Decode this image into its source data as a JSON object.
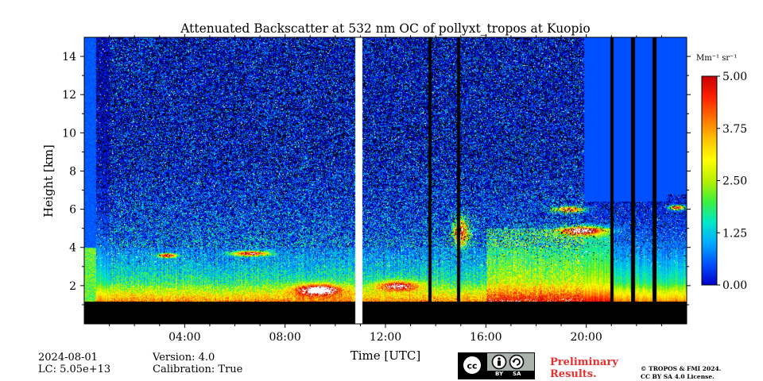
{
  "chart_data": {
    "type": "heatmap",
    "title": "Attenuated Backscatter at 532 nm OC of pollyxt_tropos at Kuopio",
    "xlabel": "Time [UTC]",
    "ylabel": "Height [km]",
    "xlim_hours": [
      0,
      24
    ],
    "ylim_km": [
      0,
      15
    ],
    "x_ticks": [
      {
        "value": 4,
        "label": "04:00"
      },
      {
        "value": 8,
        "label": "08:00"
      },
      {
        "value": 12,
        "label": "12:00"
      },
      {
        "value": 16,
        "label": "16:00"
      },
      {
        "value": 20,
        "label": "20:00"
      }
    ],
    "y_ticks": [
      {
        "value": 2,
        "label": "2"
      },
      {
        "value": 4,
        "label": "4"
      },
      {
        "value": 6,
        "label": "6"
      },
      {
        "value": 8,
        "label": "8"
      },
      {
        "value": 10,
        "label": "10"
      },
      {
        "value": 12,
        "label": "12"
      },
      {
        "value": 14,
        "label": "14"
      }
    ],
    "colorbar": {
      "label": "Mm⁻¹ sr⁻¹",
      "min": 0.0,
      "max": 5.0,
      "ticks": [
        "0.00",
        "1.25",
        "2.50",
        "3.75",
        "5.00"
      ],
      "colors": [
        "#0000c8",
        "#0050ff",
        "#00aaff",
        "#00e8c8",
        "#3cf03c",
        "#b8f000",
        "#ffff00",
        "#ffc000",
        "#ff7000",
        "#ff2000",
        "#c80000"
      ]
    },
    "features": {
      "no_signal_below_km": 1.2,
      "data_gap_hours": [
        10.78,
        11.08
      ],
      "clear_profile_after_hours": 19.9,
      "dark_profile_lines_hours": [
        13.75,
        14.9,
        21.0,
        21.85,
        22.7
      ]
    }
  },
  "footer": {
    "date": "2024-08-01",
    "lc": "LC: 5.05e+13",
    "version": "Version: 4.0",
    "calibration": "Calibration: True",
    "preliminary_line1": "Preliminary",
    "preliminary_line2": "Results.",
    "copyright_line1": "© TROPOS & FMI 2024.",
    "copyright_line2": "CC BY SA 4.0 License.",
    "cc_by": "BY",
    "cc_sa": "SA"
  }
}
